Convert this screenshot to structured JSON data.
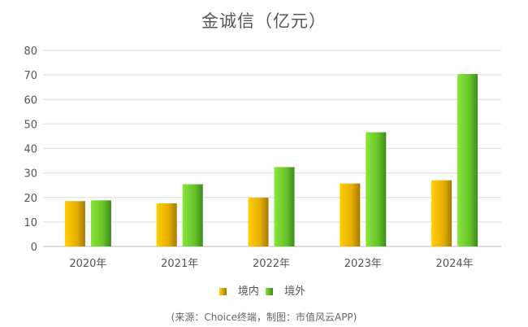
{
  "chart_data": {
    "type": "bar",
    "title": "金诚信（亿元）",
    "categories": [
      "2020年",
      "2021年",
      "2022年",
      "2023年",
      "2024年"
    ],
    "series": [
      {
        "name": "境内",
        "values": [
          18.5,
          17.6,
          19.9,
          25.7,
          27.0
        ],
        "color": "#f2b800"
      },
      {
        "name": "境外",
        "values": [
          18.8,
          25.4,
          32.4,
          46.6,
          70.4
        ],
        "color": "#6ccf2c"
      }
    ],
    "ylim": [
      0,
      80
    ],
    "yticks": [
      0,
      10,
      20,
      30,
      40,
      50,
      60,
      70,
      80
    ],
    "grid": true,
    "legend": "bottom",
    "xlabel": "",
    "ylabel": ""
  },
  "source": "(来源：Choice终端，制图：市值风云APP)"
}
